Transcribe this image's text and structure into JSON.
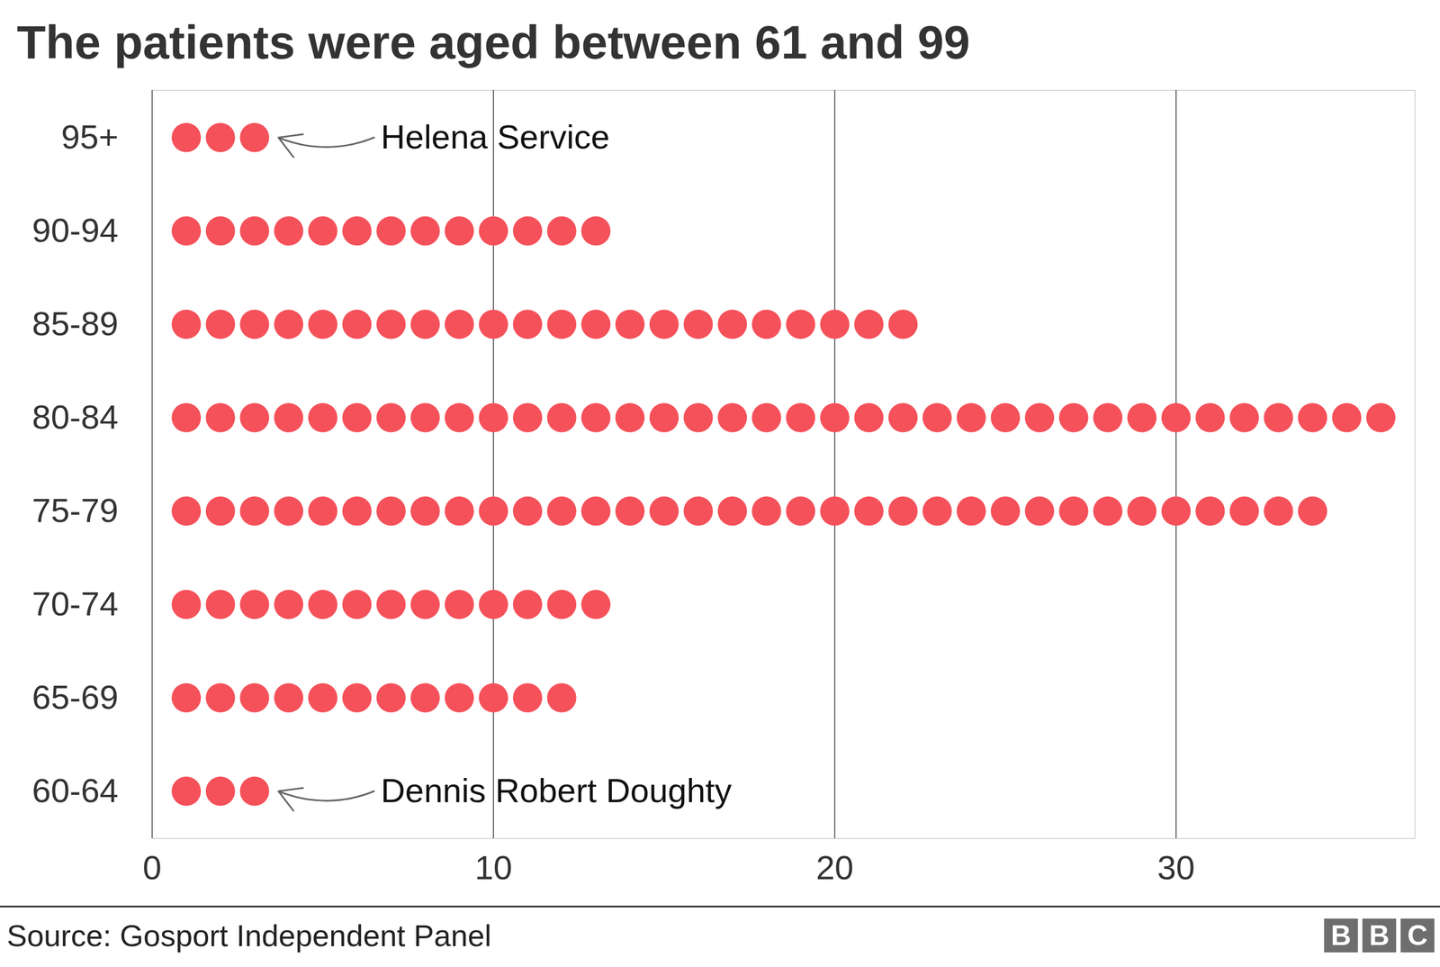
{
  "chart_data": {
    "type": "dot",
    "orientation": "horizontal",
    "title": "The patients were aged between 61 and 99",
    "categories": [
      "95+",
      "90-94",
      "85-89",
      "80-84",
      "75-79",
      "70-74",
      "65-69",
      "60-64"
    ],
    "values": [
      3,
      13,
      22,
      36,
      34,
      13,
      12,
      3
    ],
    "color": "#f5515a",
    "xlim": [
      0,
      37
    ],
    "xticks": [
      0,
      10,
      20,
      30
    ],
    "grid": true,
    "annotations": [
      {
        "category": "95+",
        "text": "Helena Service"
      },
      {
        "category": "60-64",
        "text": "Dennis Robert Doughty"
      }
    ],
    "source": "Source: Gosport Independent Panel",
    "logo": "BBC"
  }
}
